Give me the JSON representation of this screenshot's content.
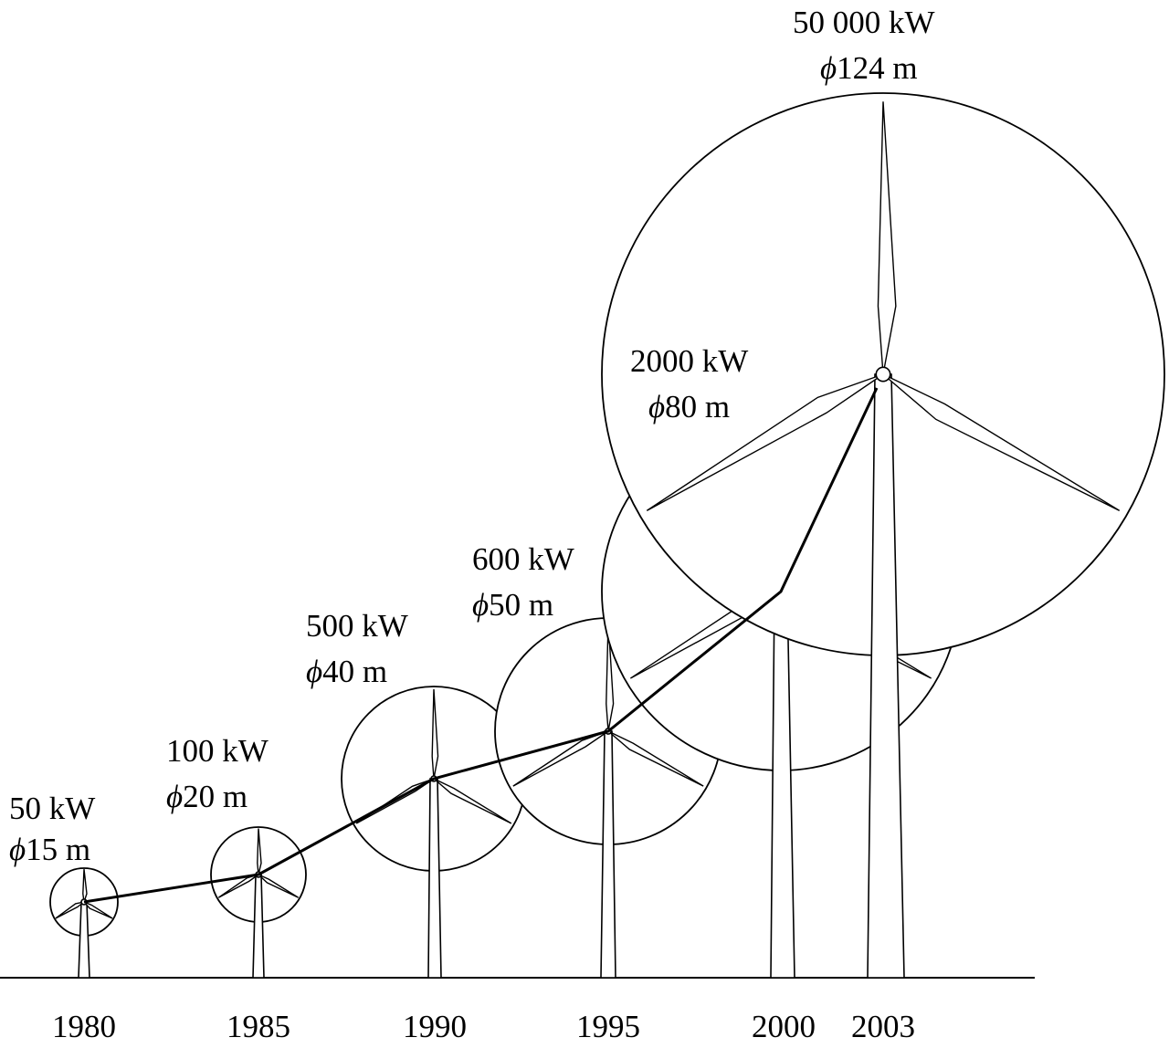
{
  "turbines": [
    {
      "year": "1980",
      "power": "50 kW",
      "diameter": "15 m",
      "diameter_symbol": "ϕ"
    },
    {
      "year": "1985",
      "power": "100 kW",
      "diameter": "20 m",
      "diameter_symbol": "ϕ"
    },
    {
      "year": "1990",
      "power": "500 kW",
      "diameter": "40 m",
      "diameter_symbol": "ϕ"
    },
    {
      "year": "1995",
      "power": "600 kW",
      "diameter": "50 m",
      "diameter_symbol": "ϕ"
    },
    {
      "year": "2000",
      "power": "2000 kW",
      "diameter": "80 m",
      "diameter_symbol": "ϕ"
    },
    {
      "year": "2003",
      "power": "50 000 kW",
      "diameter": "124 m",
      "diameter_symbol": "ϕ"
    }
  ],
  "colors": {
    "stroke": "#000000",
    "background": "#ffffff"
  }
}
